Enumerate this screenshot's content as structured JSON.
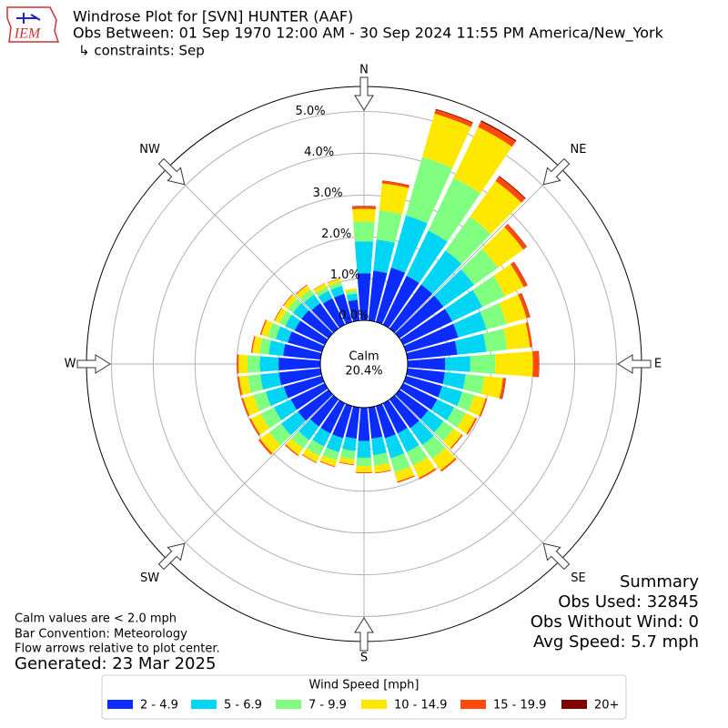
{
  "chart_data": {
    "type": "windrose",
    "title": "Windrose Plot for [SVN] HUNTER (AAF)",
    "subtitle": "Obs Between: 01 Sep 1970 12:00 AM - 30 Sep 2024 11:55 PM America/New_York",
    "constraints": "↳ constraints: Sep",
    "logo_text": "IEM",
    "x": [
      0,
      10,
      20,
      30,
      40,
      50,
      60,
      70,
      80,
      90,
      100,
      110,
      120,
      130,
      140,
      150,
      160,
      170,
      180,
      190,
      200,
      210,
      220,
      230,
      240,
      250,
      260,
      270,
      280,
      290,
      300,
      310,
      320,
      330,
      340,
      350
    ],
    "xticks": [
      {
        "value": 0,
        "label": "N"
      },
      {
        "value": 45,
        "label": "NE"
      },
      {
        "value": 90,
        "label": "E"
      },
      {
        "value": 135,
        "label": "SE"
      },
      {
        "value": 180,
        "label": "S"
      },
      {
        "value": 225,
        "label": "SW"
      },
      {
        "value": 270,
        "label": "W"
      },
      {
        "value": 315,
        "label": "NW"
      }
    ],
    "ylim": [
      0,
      5.6
    ],
    "yticks": [
      {
        "value": 0,
        "label": "0.0%"
      },
      {
        "value": 1,
        "label": "1.0%"
      },
      {
        "value": 2,
        "label": "2.0%"
      },
      {
        "value": 3,
        "label": "3.0%"
      },
      {
        "value": 4,
        "label": "4.0%"
      },
      {
        "value": 5,
        "label": "5.0%"
      }
    ],
    "grid": true,
    "calm": {
      "label": "Calm",
      "value": 20.4,
      "value_label": "20.4%"
    },
    "legend_title": "Wind Speed [mph]",
    "series": [
      {
        "name": "2 - 4.9",
        "color": "#0a2cff",
        "values": [
          1.13,
          1.2,
          1.35,
          1.3,
          1.3,
          1.3,
          1.3,
          1.3,
          1.2,
          0.9,
          0.9,
          0.9,
          0.9,
          0.85,
          0.85,
          0.8,
          0.8,
          0.75,
          0.8,
          0.75,
          0.8,
          0.8,
          0.8,
          0.9,
          0.9,
          0.95,
          1.0,
          1.0,
          0.9,
          0.85,
          0.8,
          0.8,
          0.75,
          0.7,
          0.7,
          0.5
        ]
      },
      {
        "name": "5 - 6.9",
        "color": "#00d5f5",
        "values": [
          0.76,
          0.75,
          1.3,
          1.2,
          1.0,
          0.9,
          0.8,
          0.7,
          0.7,
          0.6,
          0.5,
          0.5,
          0.45,
          0.45,
          0.5,
          0.5,
          0.5,
          0.4,
          0.4,
          0.3,
          0.35,
          0.35,
          0.4,
          0.5,
          0.45,
          0.45,
          0.45,
          0.45,
          0.35,
          0.3,
          0.25,
          0.25,
          0.25,
          0.2,
          0.2,
          0.15
        ]
      },
      {
        "name": "7 - 9.9",
        "color": "#80ff80",
        "values": [
          0.48,
          0.7,
          1.45,
          1.4,
          1.0,
          0.7,
          0.6,
          0.5,
          0.5,
          0.6,
          0.45,
          0.3,
          0.3,
          0.3,
          0.4,
          0.35,
          0.35,
          0.25,
          0.2,
          0.2,
          0.2,
          0.25,
          0.25,
          0.35,
          0.35,
          0.3,
          0.3,
          0.3,
          0.22,
          0.2,
          0.15,
          0.15,
          0.15,
          0.1,
          0.1,
          0.08
        ]
      },
      {
        "name": "10 - 14.9",
        "color": "#ffe800",
        "values": [
          0.3,
          0.65,
          1.08,
          1.35,
          1.05,
          0.75,
          0.5,
          0.5,
          0.55,
          0.9,
          0.45,
          0.28,
          0.27,
          0.24,
          0.34,
          0.33,
          0.23,
          0.17,
          0.15,
          0.12,
          0.15,
          0.17,
          0.19,
          0.27,
          0.26,
          0.26,
          0.21,
          0.21,
          0.17,
          0.16,
          0.13,
          0.13,
          0.13,
          0.1,
          0.08,
          0.05
        ]
      },
      {
        "name": "15 - 19.9",
        "color": "#ff4a0a",
        "values": [
          0.06,
          0.06,
          0.1,
          0.15,
          0.13,
          0.1,
          0.09,
          0.08,
          0.05,
          0.14,
          0.06,
          0.04,
          0.04,
          0.03,
          0.04,
          0.04,
          0.03,
          0.02,
          0.02,
          0.02,
          0.02,
          0.02,
          0.03,
          0.05,
          0.04,
          0.04,
          0.04,
          0.04,
          0.03,
          0.03,
          0.02,
          0.02,
          0.02,
          0.01,
          0.01,
          0.0
        ]
      },
      {
        "name": "20+",
        "color": "#800000",
        "values": [
          0.01,
          0.01,
          0.02,
          0.03,
          0.02,
          0.01,
          0.01,
          0.01,
          0.0,
          0.01,
          0.01,
          0.0,
          0.0,
          0.0,
          0.0,
          0.0,
          0.0,
          0.0,
          0.0,
          0.0,
          0.0,
          0.0,
          0.0,
          0.0,
          0.0,
          0.0,
          0.0,
          0.0,
          0.0,
          0.0,
          0.0,
          0.0,
          0.0,
          0.0,
          0.0,
          0.0
        ]
      }
    ],
    "notes": [
      "Calm values are < 2.0 mph",
      "Bar Convention: Meteorology",
      "Flow arrows relative to plot center."
    ],
    "generated": "Generated: 23 Mar 2025",
    "summary": [
      "Summary",
      "Obs Used: 32845",
      "Obs Without Wind: 0",
      "Avg Speed: 5.7 mph"
    ]
  }
}
